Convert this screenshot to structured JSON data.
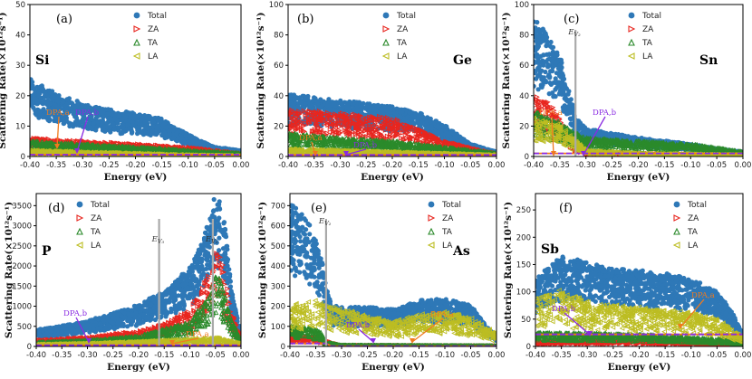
{
  "colors": {
    "total": "#2e78b7",
    "za": "#e8261f",
    "ta": "#2b8a2b",
    "la": "#bcbd22",
    "dpa_a": "#f07a1e",
    "dpa_b": "#8a2be2",
    "ev_line": "#a9a9a9"
  },
  "legend": {
    "total": "Total",
    "za": "ZA",
    "ta": "TA",
    "la": "LA"
  },
  "axis_labels": {
    "x": "Energy (eV)",
    "y": "Scattering Rate(×10¹²s⁻¹)"
  },
  "chart_data": [
    {
      "type": "scatter",
      "panel": "(a)",
      "element": "Si",
      "xlabel": "Energy (eV)",
      "ylabel": "Scattering Rate(×10¹²s⁻¹)",
      "xlim": [
        -0.4,
        0.0
      ],
      "ylim": [
        0,
        50
      ],
      "xticks": [
        "-0.40",
        "-0.35",
        "-0.30",
        "-0.25",
        "-0.20",
        "-0.15",
        "-0.10",
        "-0.05",
        "0.00"
      ],
      "yticks": [
        "0",
        "10",
        "20",
        "30",
        "40",
        "50"
      ],
      "series": [
        {
          "name": "Total",
          "x": [
            -0.4,
            -0.35,
            -0.3,
            -0.25,
            -0.2,
            -0.15,
            -0.1,
            -0.05,
            0.0
          ],
          "values": [
            25,
            20,
            17,
            15,
            14,
            12,
            7,
            3,
            2
          ]
        },
        {
          "name": "ZA",
          "x": [
            -0.4,
            -0.3,
            -0.2,
            -0.1,
            0.0
          ],
          "values": [
            6,
            5,
            4,
            3,
            1
          ]
        },
        {
          "name": "TA",
          "x": [
            -0.4,
            -0.3,
            -0.2,
            -0.1,
            0.0
          ],
          "values": [
            5,
            4,
            3,
            2,
            1
          ]
        },
        {
          "name": "LA",
          "x": [
            -0.4,
            -0.3,
            -0.2,
            -0.1,
            0.0
          ],
          "values": [
            2,
            1.5,
            1,
            0.5,
            0.2
          ]
        },
        {
          "name": "DPA,a",
          "x": [
            -0.4,
            0.0
          ],
          "values": [
            0.6,
            0.6
          ]
        },
        {
          "name": "DPA,b",
          "x": [
            -0.4,
            0.0
          ],
          "values": [
            0.6,
            0.6
          ]
        }
      ],
      "annotations": [
        {
          "label": "DPA,a"
        },
        {
          "label": "DPA,b"
        }
      ],
      "ev_line": null
    },
    {
      "type": "scatter",
      "panel": "(b)",
      "element": "Ge",
      "xlabel": "Energy (eV)",
      "ylabel": "Scattering Rate(×10¹²s⁻¹)",
      "xlim": [
        -0.4,
        0.0
      ],
      "ylim": [
        0,
        100
      ],
      "xticks": [
        "-0.40",
        "-0.35",
        "-0.30",
        "-0.25",
        "-0.20",
        "-0.15",
        "-0.10",
        "-0.05",
        "0.00"
      ],
      "yticks": [
        "0",
        "20",
        "40",
        "60",
        "80",
        "100"
      ],
      "series": [
        {
          "name": "Total",
          "x": [
            -0.4,
            -0.35,
            -0.3,
            -0.25,
            -0.2,
            -0.15,
            -0.1,
            -0.05,
            0.0
          ],
          "values": [
            40,
            38,
            36,
            34,
            32,
            28,
            20,
            8,
            3
          ]
        },
        {
          "name": "ZA",
          "x": [
            -0.4,
            -0.3,
            -0.2,
            -0.15,
            -0.1,
            0.0
          ],
          "values": [
            30,
            28,
            25,
            18,
            10,
            2
          ]
        },
        {
          "name": "TA",
          "x": [
            -0.4,
            -0.3,
            -0.2,
            -0.1,
            0.0
          ],
          "values": [
            15,
            12,
            10,
            6,
            2
          ]
        },
        {
          "name": "LA",
          "x": [
            -0.4,
            -0.3,
            -0.2,
            -0.1,
            0.0
          ],
          "values": [
            5,
            4,
            3,
            2,
            1
          ]
        },
        {
          "name": "DPA,a",
          "x": [
            -0.4,
            0.0
          ],
          "values": [
            1,
            1
          ]
        },
        {
          "name": "DPA,b",
          "x": [
            -0.4,
            0.0
          ],
          "values": [
            1,
            1
          ]
        }
      ],
      "annotations": [
        {
          "label": "DPA,a"
        },
        {
          "label": "DPA,b"
        }
      ],
      "ev_line": null
    },
    {
      "type": "scatter",
      "panel": "(c)",
      "element": "Sn",
      "xlabel": "Energy (eV)",
      "ylabel": "Scattering Rate(×10¹²s⁻¹)",
      "xlim": [
        -0.4,
        0.0
      ],
      "ylim": [
        0,
        100
      ],
      "xticks": [
        "-0.40",
        "-0.35",
        "-0.30",
        "-0.25",
        "-0.20",
        "-0.15",
        "-0.10",
        "-0.05",
        "0.00"
      ],
      "yticks": [
        "0",
        "20",
        "40",
        "60",
        "80",
        "100"
      ],
      "series": [
        {
          "name": "Total",
          "x": [
            -0.4,
            -0.37,
            -0.35,
            -0.33,
            -0.32,
            -0.3,
            -0.25,
            -0.2,
            -0.15,
            -0.1,
            -0.05,
            0.0
          ],
          "values": [
            90,
            75,
            65,
            40,
            25,
            18,
            15,
            12,
            10,
            8,
            5,
            3
          ]
        },
        {
          "name": "ZA",
          "x": [
            -0.4,
            -0.37,
            -0.35,
            -0.32,
            -0.3,
            -0.2,
            0.0
          ],
          "values": [
            40,
            35,
            25,
            8,
            3,
            2,
            1
          ]
        },
        {
          "name": "TA",
          "x": [
            -0.4,
            -0.35,
            -0.32,
            -0.3,
            -0.2,
            -0.1,
            0.0
          ],
          "values": [
            30,
            22,
            15,
            12,
            10,
            8,
            3
          ]
        },
        {
          "name": "LA",
          "x": [
            -0.4,
            -0.35,
            -0.32,
            -0.3,
            -0.2,
            0.0
          ],
          "values": [
            25,
            20,
            10,
            4,
            2,
            1
          ]
        },
        {
          "name": "DPA,a",
          "x": [
            -0.4,
            0.0
          ],
          "values": [
            2,
            2
          ]
        },
        {
          "name": "DPA,b",
          "x": [
            -0.4,
            0.0
          ],
          "values": [
            2,
            2
          ]
        }
      ],
      "annotations": [
        {
          "label": "DPA,a"
        },
        {
          "label": "DPA,b"
        }
      ],
      "ev_line": {
        "x": -0.32,
        "label": "E",
        "sub": "V₂"
      }
    },
    {
      "type": "scatter",
      "panel": "(d)",
      "element": "P",
      "xlabel": "Energy (eV)",
      "ylabel": "Scattering Rate(×10¹²s⁻¹)",
      "xlim": [
        -0.4,
        0.0
      ],
      "ylim": [
        0,
        3800
      ],
      "xticks": [
        "-0.40",
        "-0.35",
        "-0.30",
        "-0.25",
        "-0.20",
        "-0.15",
        "-0.10",
        "-0.05",
        "0.00"
      ],
      "yticks": [
        "0",
        "500",
        "1000",
        "1500",
        "2000",
        "2500",
        "3000",
        "3500"
      ],
      "series": [
        {
          "name": "Total",
          "x": [
            -0.4,
            -0.35,
            -0.3,
            -0.25,
            -0.2,
            -0.15,
            -0.1,
            -0.08,
            -0.06,
            -0.05,
            -0.04,
            -0.03,
            -0.02,
            0.0
          ],
          "values": [
            400,
            500,
            620,
            800,
            1000,
            1350,
            1900,
            2400,
            3200,
            3700,
            3600,
            2800,
            1500,
            300
          ]
        },
        {
          "name": "ZA",
          "x": [
            -0.4,
            -0.3,
            -0.2,
            -0.15,
            -0.1,
            -0.08,
            -0.06,
            -0.05,
            -0.04,
            -0.03,
            -0.02,
            0.0
          ],
          "values": [
            150,
            220,
            380,
            550,
            900,
            1300,
            1900,
            2300,
            2200,
            1700,
            900,
            200
          ]
        },
        {
          "name": "TA",
          "x": [
            -0.4,
            -0.3,
            -0.2,
            -0.1,
            -0.06,
            -0.05,
            -0.04,
            -0.02,
            0.0
          ],
          "values": [
            100,
            150,
            250,
            600,
            1300,
            1800,
            1600,
            700,
            150
          ]
        },
        {
          "name": "LA",
          "x": [
            -0.4,
            -0.3,
            -0.2,
            -0.1,
            -0.05,
            0.0
          ],
          "values": [
            50,
            80,
            120,
            180,
            220,
            60
          ]
        },
        {
          "name": "DPA,a",
          "x": [
            -0.4,
            0.0
          ],
          "values": [
            30,
            30
          ]
        },
        {
          "name": "DPA,b",
          "x": [
            -0.4,
            0.0
          ],
          "values": [
            30,
            30
          ]
        }
      ],
      "annotations": [
        {
          "label": "DPA,b"
        },
        {
          "label": "DPA,a"
        }
      ],
      "ev_line": [
        {
          "x": -0.16,
          "label": "E",
          "sub": "V₃"
        },
        {
          "x": -0.055,
          "label": "E",
          "sub": "V₂"
        }
      ]
    },
    {
      "type": "scatter",
      "panel": "(e)",
      "element": "As",
      "xlabel": "Energy (eV)",
      "ylabel": "Scattering Rate(×10¹²s⁻¹)",
      "xlim": [
        -0.4,
        0.0
      ],
      "ylim": [
        0,
        760
      ],
      "xticks": [
        "-0.40",
        "-0.35",
        "-0.30",
        "-0.25",
        "-0.20",
        "-0.15",
        "-0.10",
        "-0.05",
        "0.00"
      ],
      "yticks": [
        "0",
        "100",
        "200",
        "300",
        "400",
        "500",
        "600",
        "700"
      ],
      "series": [
        {
          "name": "Total",
          "x": [
            -0.4,
            -0.38,
            -0.36,
            -0.34,
            -0.33,
            -0.32,
            -0.3,
            -0.25,
            -0.2,
            -0.15,
            -0.1,
            -0.05,
            -0.02,
            0.0
          ],
          "values": [
            700,
            650,
            580,
            450,
            300,
            200,
            190,
            190,
            180,
            220,
            230,
            200,
            100,
            50
          ]
        },
        {
          "name": "ZA",
          "x": [
            -0.4,
            -0.35,
            -0.33,
            -0.3,
            0.0
          ],
          "values": [
            50,
            45,
            30,
            5,
            2
          ]
        },
        {
          "name": "TA",
          "x": [
            -0.4,
            -0.36,
            -0.34,
            -0.33,
            -0.3,
            0.0
          ],
          "values": [
            100,
            90,
            70,
            20,
            5,
            2
          ]
        },
        {
          "name": "LA",
          "x": [
            -0.4,
            -0.35,
            -0.3,
            -0.25,
            -0.2,
            -0.15,
            -0.1,
            -0.05,
            0.0
          ],
          "values": [
            200,
            220,
            180,
            150,
            120,
            160,
            170,
            140,
            60
          ]
        },
        {
          "name": "DPA,a",
          "x": [
            -0.4,
            -0.33,
            -0.32,
            0.0
          ],
          "values": [
            15,
            15,
            2,
            2
          ]
        },
        {
          "name": "DPA,b",
          "x": [
            -0.4,
            -0.33,
            -0.32,
            0.0
          ],
          "values": [
            15,
            15,
            2,
            2
          ]
        }
      ],
      "annotations": [
        {
          "label": "DPA,b"
        },
        {
          "label": "DPA,a"
        }
      ],
      "ev_line": {
        "x": -0.33,
        "label": "E",
        "sub": "V₂"
      }
    },
    {
      "type": "scatter",
      "panel": "(f)",
      "element": "Sb",
      "xlabel": "Energy (eV)",
      "ylabel": "Scattering Rate(×10¹²s⁻¹)",
      "xlim": [
        -0.4,
        0.0
      ],
      "ylim": [
        0,
        280
      ],
      "xticks": [
        "-0.40",
        "-0.35",
        "-0.30",
        "-0.25",
        "-0.20",
        "-0.15",
        "-0.10",
        "-0.05",
        "0.00"
      ],
      "yticks": [
        "0",
        "50",
        "100",
        "150",
        "200",
        "250"
      ],
      "series": [
        {
          "name": "Total",
          "x": [
            -0.4,
            -0.35,
            -0.3,
            -0.25,
            -0.2,
            -0.15,
            -0.1,
            -0.05,
            -0.02,
            0.0
          ],
          "values": [
            120,
            160,
            150,
            140,
            135,
            130,
            120,
            100,
            60,
            20
          ]
        },
        {
          "name": "ZA",
          "x": [
            -0.4,
            -0.2,
            0.0
          ],
          "values": [
            10,
            10,
            5
          ]
        },
        {
          "name": "TA",
          "x": [
            -0.4,
            -0.2,
            0.0
          ],
          "values": [
            25,
            22,
            10
          ]
        },
        {
          "name": "LA",
          "x": [
            -0.4,
            -0.35,
            -0.3,
            -0.2,
            -0.1,
            -0.05,
            0.0
          ],
          "values": [
            90,
            100,
            80,
            70,
            60,
            50,
            15
          ]
        },
        {
          "name": "DPA,a",
          "x": [
            -0.4,
            0.0
          ],
          "values": [
            22,
            22
          ]
        },
        {
          "name": "DPA,b",
          "x": [
            -0.4,
            0.0
          ],
          "values": [
            22,
            22
          ]
        }
      ],
      "annotations": [
        {
          "label": "DPA,b"
        },
        {
          "label": "DPA,a"
        }
      ],
      "ev_line": null
    }
  ]
}
